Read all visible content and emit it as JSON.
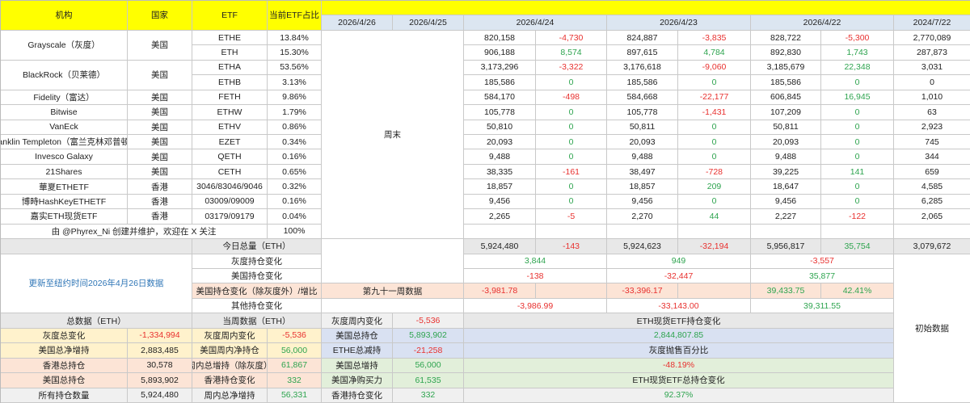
{
  "colors": {
    "header": "#ffff00",
    "date_row": "#dce6f1",
    "negative": "#e8312f",
    "positive": "#2ea44f",
    "link": "#2e75b6"
  },
  "header": {
    "institution": "机构",
    "country": "国家",
    "etf": "ETF",
    "share": "当前ETF占比",
    "dates": [
      "2026/4/26",
      "2026/4/25",
      "2026/4/24",
      "2026/4/23",
      "2026/4/22",
      "2024/7/22"
    ]
  },
  "weekend_label": "周末",
  "institutions": [
    {
      "name": "Grayscale（灰度）",
      "country": "美国",
      "etfs": [
        {
          "code": "ETHE",
          "share": "13.84%",
          "values": [
            "820,158",
            "-4,730",
            "824,887",
            "-3,835",
            "828,722",
            "-5,300",
            "2,770,089"
          ]
        },
        {
          "code": "ETH",
          "share": "15.30%",
          "values": [
            "906,188",
            "8,574",
            "897,615",
            "4,784",
            "892,830",
            "1,743",
            "287,873"
          ]
        }
      ]
    },
    {
      "name": "BlackRock（贝莱德）",
      "country": "美国",
      "etfs": [
        {
          "code": "ETHA",
          "share": "53.56%",
          "values": [
            "3,173,296",
            "-3,322",
            "3,176,618",
            "-9,060",
            "3,185,679",
            "22,348",
            "3,031"
          ]
        },
        {
          "code": "ETHB",
          "share": "3.13%",
          "values": [
            "185,586",
            "0",
            "185,586",
            "0",
            "185,586",
            "0",
            "0"
          ]
        }
      ]
    },
    {
      "name": "Fidelity（富达）",
      "country": "美国",
      "etfs": [
        {
          "code": "FETH",
          "share": "9.86%",
          "values": [
            "584,170",
            "-498",
            "584,668",
            "-22,177",
            "606,845",
            "16,945",
            "1,010"
          ]
        }
      ]
    },
    {
      "name": "Bitwise",
      "country": "美国",
      "etfs": [
        {
          "code": "ETHW",
          "share": "1.79%",
          "values": [
            "105,778",
            "0",
            "105,778",
            "-1,431",
            "107,209",
            "0",
            "63"
          ]
        }
      ]
    },
    {
      "name": "VanEck",
      "country": "美国",
      "etfs": [
        {
          "code": "ETHV",
          "share": "0.86%",
          "values": [
            "50,810",
            "0",
            "50,811",
            "0",
            "50,811",
            "0",
            "2,923"
          ]
        }
      ]
    },
    {
      "name": "Franklin Templeton（富兰克林邓普顿）",
      "country": "美国",
      "etfs": [
        {
          "code": "EZET",
          "share": "0.34%",
          "values": [
            "20,093",
            "0",
            "20,093",
            "0",
            "20,093",
            "0",
            "745"
          ]
        }
      ]
    },
    {
      "name": "Invesco Galaxy",
      "country": "美国",
      "etfs": [
        {
          "code": "QETH",
          "share": "0.16%",
          "values": [
            "9,488",
            "0",
            "9,488",
            "0",
            "9,488",
            "0",
            "344"
          ]
        }
      ]
    },
    {
      "name": "21Shares",
      "country": "美国",
      "etfs": [
        {
          "code": "CETH",
          "share": "0.65%",
          "values": [
            "38,335",
            "-161",
            "38,497",
            "-728",
            "39,225",
            "141",
            "659"
          ]
        }
      ]
    },
    {
      "name": "華夏ETHETF",
      "country": "香港",
      "etfs": [
        {
          "code": "3046/83046/9046",
          "share": "0.32%",
          "values": [
            "18,857",
            "0",
            "18,857",
            "209",
            "18,647",
            "0",
            "4,585"
          ]
        }
      ]
    },
    {
      "name": "博時HashKeyETHETF",
      "country": "香港",
      "etfs": [
        {
          "code": "03009/09009",
          "share": "0.16%",
          "values": [
            "9,456",
            "0",
            "9,456",
            "0",
            "9,456",
            "0",
            "6,285"
          ]
        }
      ]
    },
    {
      "name": "嘉实ETH现货ETF",
      "country": "香港",
      "etfs": [
        {
          "code": "03179/09179",
          "share": "0.04%",
          "values": [
            "2,265",
            "-5",
            "2,270",
            "44",
            "2,227",
            "-122",
            "2,065"
          ]
        }
      ]
    }
  ],
  "credit": {
    "text": "由 @Phyrex_Ni 创建并维护，欢迎在 X 关注",
    "share": "100%"
  },
  "totals": {
    "label": "今日总量（ETH）",
    "values": [
      "5,924,480",
      "-143",
      "5,924,623",
      "-32,194",
      "5,956,817",
      "35,754",
      "3,079,672"
    ]
  },
  "update_note": "更新至纽约时间2026年4月26日数据",
  "changes": {
    "grayscale": {
      "label": "灰度持仓变化",
      "values": [
        "3,844",
        "949",
        "-3,557"
      ]
    },
    "us": {
      "label": "美国持仓变化",
      "values": [
        "-138",
        "-32,447",
        "35,877"
      ]
    },
    "us_ex_grayscale": {
      "label": "美国持仓变化（除灰度外）/增比",
      "values": [
        "-3,981.78",
        "",
        "-33,396.17",
        "",
        "39,433.75",
        "42.41%"
      ]
    },
    "other": {
      "label": "其他持仓变化",
      "values": [
        "-3,986.99",
        "-33,143.00",
        "39,311.55"
      ]
    }
  },
  "week_label": "第九十一周数据",
  "initial_label": "初始数据",
  "summary": {
    "header": "总数据（ETH）",
    "rows": [
      {
        "label": "灰度总变化",
        "value": "-1,334,994"
      },
      {
        "label": "美国总净增持",
        "value": "2,883,485"
      },
      {
        "label": "香港总持仓",
        "value": "30,578"
      },
      {
        "label": "美国总持仓",
        "value": "5,893,902"
      },
      {
        "label": "所有持仓数量",
        "value": "5,924,480"
      }
    ]
  },
  "week": {
    "header": "当周数据（ETH）",
    "rows": [
      {
        "label": "灰度周内变化",
        "value": "-5,536"
      },
      {
        "label": "美国周内净持仓",
        "value": "56,000"
      },
      {
        "label": "周内总增持（除灰度）",
        "value": "61,867"
      },
      {
        "label": "香港持仓变化",
        "value": "332"
      },
      {
        "label": "周内总净增持",
        "value": "56,331"
      }
    ]
  },
  "weekly_extra": {
    "rows": [
      {
        "label": "灰度周内变化",
        "value": "-5,536"
      },
      {
        "label": "美国总持仓",
        "value": "5,893,902"
      },
      {
        "label": "ETHE总减持",
        "value": "-21,258"
      },
      {
        "label": "美国总增持",
        "value": "56,000"
      },
      {
        "label": "美国净购买力",
        "value": "61,535"
      },
      {
        "label": "香港持仓变化",
        "value": "332"
      }
    ]
  },
  "eth_panel": [
    "ETH现货ETF持仓变化",
    "2,844,807.85",
    "灰度抛售百分比",
    "-48.19%",
    "ETH现货ETF总持仓变化",
    "92.37%"
  ]
}
